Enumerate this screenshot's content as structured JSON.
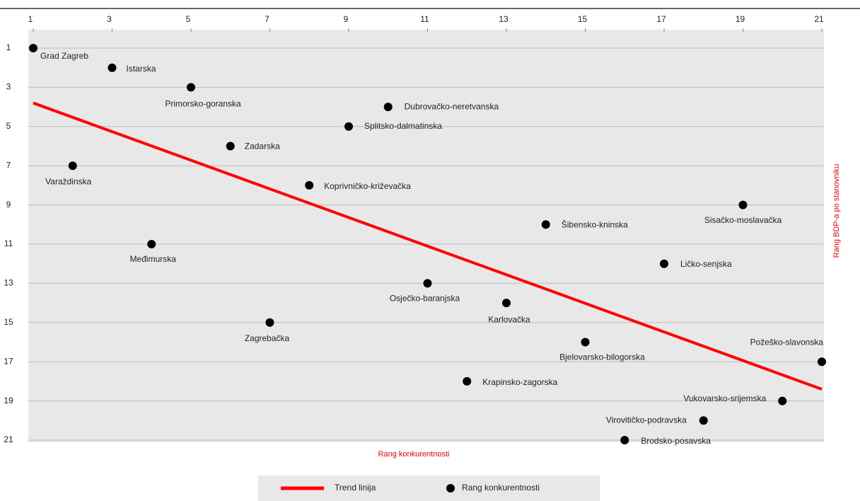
{
  "chart_data": {
    "type": "scatter",
    "xlabel": "Rang konkurentnosti",
    "ylabel": "Rang BDP-a po stanovniku",
    "xlim": [
      1,
      21
    ],
    "xticks": [
      1,
      3,
      5,
      7,
      9,
      11,
      13,
      15,
      17,
      19,
      21
    ],
    "ylim": [
      1,
      21
    ],
    "yticks": [
      1,
      3,
      5,
      7,
      9,
      11,
      13,
      15,
      17,
      19,
      21
    ],
    "y_inverted": true,
    "x_axis_position": "top",
    "grid": true,
    "series": [
      {
        "name": "Rang konkurentnosti",
        "color": "#000000",
        "labels": [
          "Grad Zagreb",
          "Istarska",
          "Primorsko-goranska",
          "Dubrovačko-neretvanska",
          "Splitsko-dalmatinska",
          "Zadarska",
          "Varaždinska",
          "Koprivničko-križevačka",
          "Sisačko-moslavačka",
          "Šibensko-kninska",
          "Međimurska",
          "Ličko-senjska",
          "Osječko-baranjska",
          "Karlovačka",
          "Zagrebačka",
          "Bjelovarsko-bilogorska",
          "Požeško-slavonska",
          "Krapinsko-zagorska",
          "Vukovarsko-srijemska",
          "Virovitičko-podravska",
          "Brodsko-posavska"
        ],
        "x": [
          1,
          3,
          5,
          10,
          9,
          6,
          2,
          8,
          19,
          14,
          4,
          17,
          11,
          13,
          7,
          15,
          21,
          12,
          20,
          18,
          16
        ],
        "values": [
          1,
          2,
          3,
          4,
          5,
          6,
          7,
          8,
          9,
          10,
          11,
          12,
          13,
          14,
          15,
          16,
          17,
          18,
          19,
          20,
          21
        ]
      }
    ],
    "trend": {
      "name": "Trend linija",
      "color": "#ff0000",
      "x": [
        1,
        21
      ],
      "values": [
        3.8,
        18.4
      ]
    },
    "legend": "bottom"
  }
}
